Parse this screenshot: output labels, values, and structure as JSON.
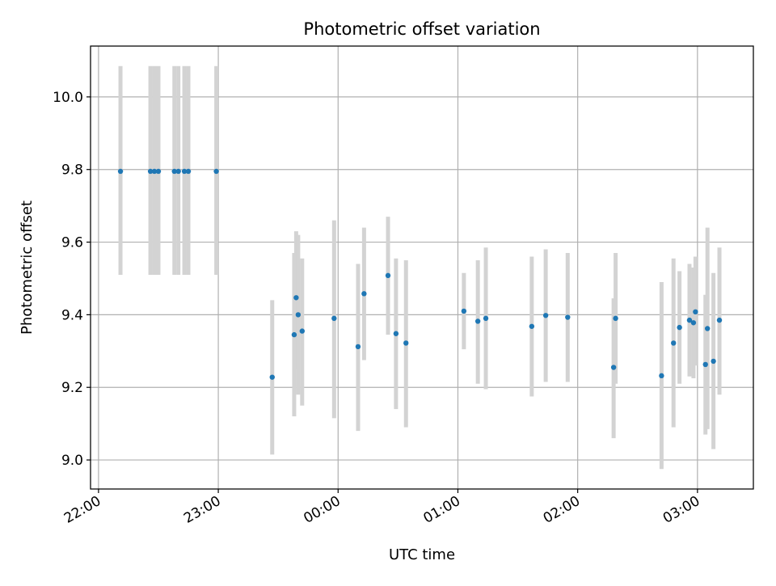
{
  "colors": {
    "marker": "#1f77b4",
    "errorbar": "#d3d3d3",
    "grid": "#b0b0b0",
    "axis": "#000000",
    "background": "#ffffff"
  },
  "chart_data": {
    "type": "scatter",
    "title": "Photometric offset variation",
    "xlabel": "UTC time",
    "ylabel": "Photometric offset",
    "grid": true,
    "x_is_time": true,
    "xlim": [
      "21:56",
      "03:28"
    ],
    "ylim": [
      8.92,
      10.14
    ],
    "xticks": [
      "22:00",
      "23:00",
      "00:00",
      "01:00",
      "02:00",
      "03:00"
    ],
    "yticks": [
      9.0,
      9.2,
      9.4,
      9.6,
      9.8,
      10.0
    ],
    "series": [
      {
        "error_bars": "vertical",
        "points": [
          {
            "x": "22:11",
            "y": 9.795,
            "err_low": 9.51,
            "err_high": 10.085
          },
          {
            "x": "22:26",
            "y": 9.795,
            "err_low": 9.51,
            "err_high": 10.085
          },
          {
            "x": "22:28",
            "y": 9.795,
            "err_low": 9.51,
            "err_high": 10.085
          },
          {
            "x": "22:30",
            "y": 9.795,
            "err_low": 9.51,
            "err_high": 10.085
          },
          {
            "x": "22:38",
            "y": 9.795,
            "err_low": 9.51,
            "err_high": 10.085
          },
          {
            "x": "22:40",
            "y": 9.795,
            "err_low": 9.51,
            "err_high": 10.085
          },
          {
            "x": "22:43",
            "y": 9.795,
            "err_low": 9.51,
            "err_high": 10.085
          },
          {
            "x": "22:45",
            "y": 9.795,
            "err_low": 9.51,
            "err_high": 10.085
          },
          {
            "x": "22:59",
            "y": 9.795,
            "err_low": 9.51,
            "err_high": 10.085
          },
          {
            "x": "23:27",
            "y": 9.228,
            "err_low": 9.015,
            "err_high": 9.44
          },
          {
            "x": "23:38",
            "y": 9.345,
            "err_low": 9.12,
            "err_high": 9.57
          },
          {
            "x": "23:39",
            "y": 9.447,
            "err_low": 9.25,
            "err_high": 9.63
          },
          {
            "x": "23:40",
            "y": 9.4,
            "err_low": 9.18,
            "err_high": 9.62
          },
          {
            "x": "23:42",
            "y": 9.355,
            "err_low": 9.15,
            "err_high": 9.555
          },
          {
            "x": "23:58",
            "y": 9.39,
            "err_low": 9.115,
            "err_high": 9.66
          },
          {
            "x": "00:10",
            "y": 9.312,
            "err_low": 9.08,
            "err_high": 9.54
          },
          {
            "x": "00:13",
            "y": 9.458,
            "err_low": 9.275,
            "err_high": 9.64
          },
          {
            "x": "00:25",
            "y": 9.508,
            "err_low": 9.345,
            "err_high": 9.67
          },
          {
            "x": "00:29",
            "y": 9.348,
            "err_low": 9.14,
            "err_high": 9.555
          },
          {
            "x": "00:34",
            "y": 9.322,
            "err_low": 9.09,
            "err_high": 9.55
          },
          {
            "x": "01:03",
            "y": 9.41,
            "err_low": 9.305,
            "err_high": 9.515
          },
          {
            "x": "01:10",
            "y": 9.382,
            "err_low": 9.21,
            "err_high": 9.55
          },
          {
            "x": "01:14",
            "y": 9.39,
            "err_low": 9.195,
            "err_high": 9.585
          },
          {
            "x": "01:37",
            "y": 9.368,
            "err_low": 9.175,
            "err_high": 9.56
          },
          {
            "x": "01:44",
            "y": 9.398,
            "err_low": 9.215,
            "err_high": 9.58
          },
          {
            "x": "01:55",
            "y": 9.393,
            "err_low": 9.215,
            "err_high": 9.57
          },
          {
            "x": "02:18",
            "y": 9.255,
            "err_low": 9.06,
            "err_high": 9.445
          },
          {
            "x": "02:19",
            "y": 9.39,
            "err_low": 9.21,
            "err_high": 9.57
          },
          {
            "x": "02:42",
            "y": 9.232,
            "err_low": 8.975,
            "err_high": 9.49
          },
          {
            "x": "02:48",
            "y": 9.322,
            "err_low": 9.09,
            "err_high": 9.555
          },
          {
            "x": "02:51",
            "y": 9.365,
            "err_low": 9.21,
            "err_high": 9.52
          },
          {
            "x": "02:56",
            "y": 9.385,
            "err_low": 9.23,
            "err_high": 9.54
          },
          {
            "x": "02:58",
            "y": 9.378,
            "err_low": 9.225,
            "err_high": 9.53
          },
          {
            "x": "02:59",
            "y": 9.408,
            "err_low": 9.26,
            "err_high": 9.56
          },
          {
            "x": "03:04",
            "y": 9.263,
            "err_low": 9.07,
            "err_high": 9.455
          },
          {
            "x": "03:05",
            "y": 9.362,
            "err_low": 9.085,
            "err_high": 9.64
          },
          {
            "x": "03:08",
            "y": 9.272,
            "err_low": 9.03,
            "err_high": 9.515
          },
          {
            "x": "03:11",
            "y": 9.385,
            "err_low": 9.18,
            "err_high": 9.585
          }
        ]
      }
    ]
  }
}
